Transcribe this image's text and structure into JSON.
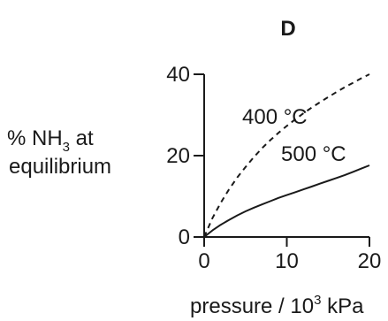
{
  "chart_data": {
    "type": "line",
    "title": "D",
    "ylabel": {
      "line1_prefix": "% NH",
      "line1_sub": "3",
      "line1_suffix": " at",
      "line2": "equilibrium"
    },
    "xlabel": {
      "prefix": "pressure / 10",
      "sup": "3",
      "suffix": " kPa"
    },
    "xlim": [
      0,
      20
    ],
    "ylim": [
      0,
      40
    ],
    "xticks": [
      0,
      10,
      20
    ],
    "yticks": [
      0,
      20,
      40
    ],
    "grid": false,
    "series": [
      {
        "name": "400 °C",
        "style": "dashed",
        "x": [
          0,
          1,
          2,
          3,
          4,
          5,
          6,
          7,
          8,
          9,
          10,
          11,
          12,
          13,
          14,
          15,
          16,
          17,
          18,
          19,
          20
        ],
        "y": [
          0,
          4.6,
          8.4,
          11.7,
          14.6,
          17.2,
          19.6,
          21.8,
          23.8,
          25.6,
          27.3,
          28.9,
          30.4,
          31.8,
          33.1,
          34.4,
          35.6,
          36.8,
          37.9,
          39.0,
          40.0
        ]
      },
      {
        "name": "500 °C",
        "style": "solid",
        "x": [
          0,
          1,
          2,
          3,
          4,
          5,
          6,
          7,
          8,
          9,
          10,
          11,
          12,
          13,
          14,
          15,
          16,
          17,
          18,
          19,
          20
        ],
        "y": [
          0,
          1.6,
          3.0,
          4.2,
          5.3,
          6.3,
          7.2,
          8.0,
          8.8,
          9.6,
          10.3,
          11.0,
          11.7,
          12.4,
          13.1,
          13.8,
          14.5,
          15.2,
          16.0,
          16.8,
          17.6
        ]
      }
    ],
    "colors": {
      "ink": "#1a1a1a"
    }
  }
}
